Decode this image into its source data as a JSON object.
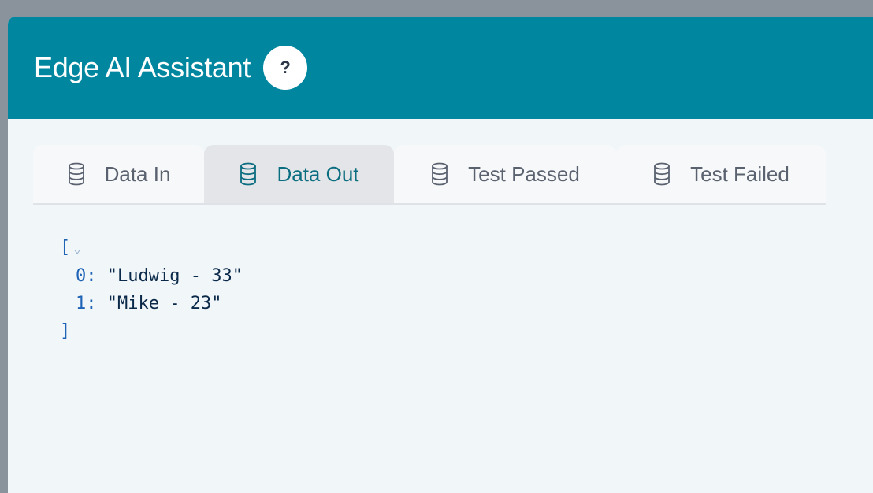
{
  "header": {
    "title": "Edge AI Assistant",
    "help_label": "?"
  },
  "tabs": [
    {
      "label": "Data In",
      "icon": "database-icon",
      "active": false
    },
    {
      "label": "Data Out",
      "icon": "database-icon",
      "active": true
    },
    {
      "label": "Test Passed",
      "icon": "database-icon",
      "active": false
    },
    {
      "label": "Test Failed",
      "icon": "database-icon",
      "active": false
    }
  ],
  "json_view": {
    "open": "[",
    "close": "]",
    "items": [
      {
        "key": "0:",
        "value": "\"Ludwig - 33\""
      },
      {
        "key": "1:",
        "value": "\"Mike - 23\""
      }
    ]
  },
  "colors": {
    "header": "#00879f",
    "active_tab_text": "#0b6d80",
    "background": "#f1f6f9"
  }
}
